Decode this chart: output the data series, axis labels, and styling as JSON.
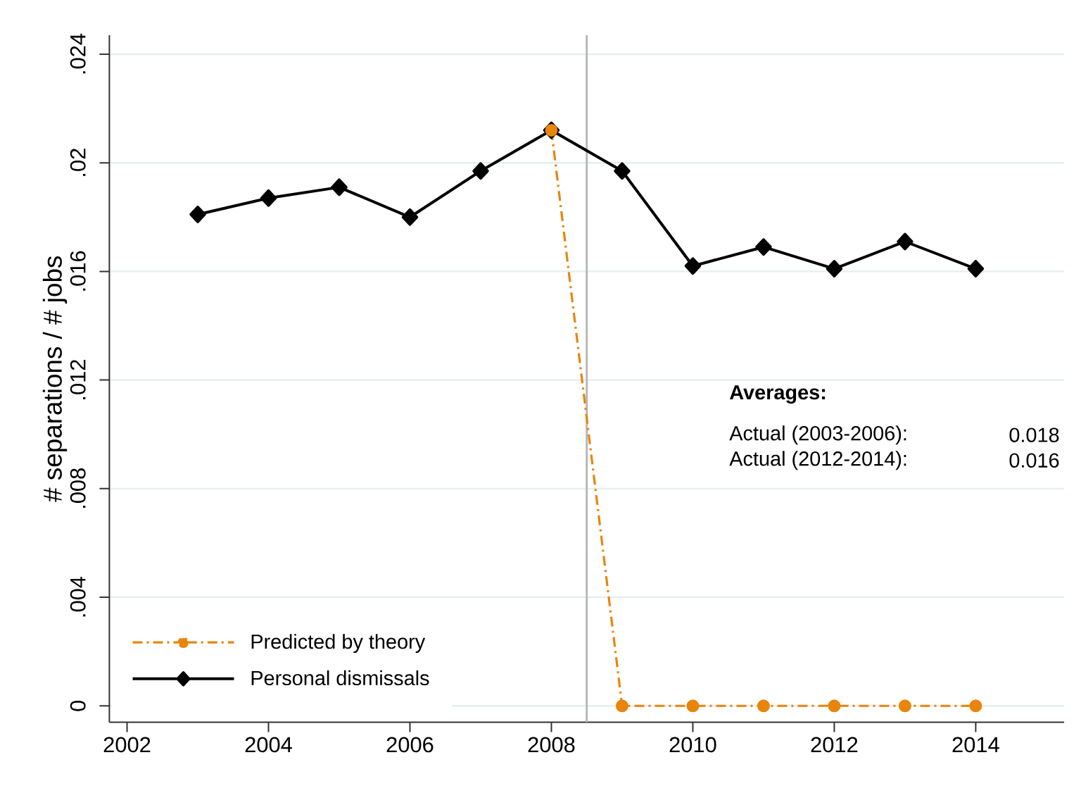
{
  "chart_data": {
    "type": "line",
    "ylabel": "# separations / # jobs",
    "x": [
      2003,
      2004,
      2005,
      2006,
      2007,
      2008,
      2009,
      2010,
      2011,
      2012,
      2013,
      2014
    ],
    "series": [
      {
        "name": "Predicted by theory",
        "color": "#e8850c",
        "marker": "circle",
        "line_style": "dashed",
        "values": [
          null,
          null,
          null,
          null,
          null,
          0.0212,
          0,
          0,
          0,
          0,
          0,
          0
        ]
      },
      {
        "name": "Personal dismissals",
        "color": "#000000",
        "marker": "diamond",
        "line_style": "solid",
        "values": [
          0.0181,
          0.0187,
          0.0191,
          0.018,
          0.0197,
          0.0212,
          0.0197,
          0.0162,
          0.0169,
          0.0161,
          0.0171,
          0.0161
        ]
      }
    ],
    "xlim": [
      2001.75,
      2015.25
    ],
    "ylim": [
      -0.0006,
      0.0247
    ],
    "xticks": [
      2002,
      2004,
      2006,
      2008,
      2010,
      2012,
      2014
    ],
    "yticks": [
      0,
      {
        "value": 0.004,
        "label": ".004"
      },
      {
        "value": 0.008,
        "label": ".008"
      },
      {
        "value": 0.012,
        "label": ".012"
      },
      {
        "value": 0.016,
        "label": ".016"
      },
      {
        "value": 0.02,
        "label": ".02"
      },
      {
        "value": 0.024,
        "label": ".024"
      }
    ],
    "ref_lines": [
      {
        "axis": "x",
        "value": 2008.5,
        "color": "#b4b4b4"
      }
    ],
    "grid": "y",
    "legend": "bottom left",
    "annotations": [
      "Averages:",
      "Actual (2003-2006):",
      "0.018",
      "Actual (2012-2014):",
      "0.016"
    ]
  }
}
